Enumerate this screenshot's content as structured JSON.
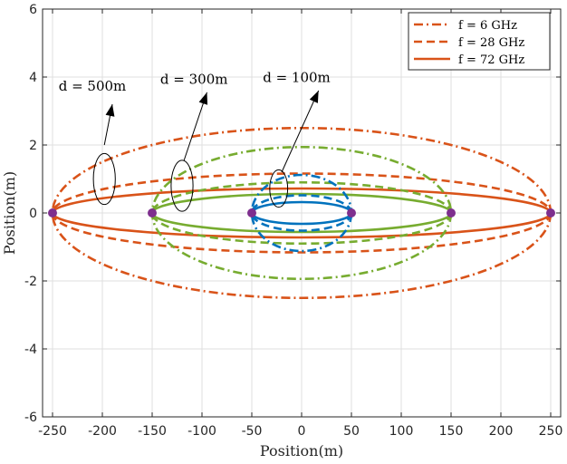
{
  "chart_data": {
    "type": "line",
    "xlabel": "Position(m)",
    "ylabel": "Position(m)",
    "xlim": [
      -260,
      260
    ],
    "ylim": [
      -6,
      6
    ],
    "xticks": [
      -250,
      -200,
      -150,
      -100,
      -50,
      0,
      50,
      100,
      150,
      200,
      250
    ],
    "yticks": [
      -6,
      -4,
      -2,
      0,
      2,
      4,
      6
    ],
    "xtick_labels": [
      "-250",
      "-200",
      "-150",
      "-100",
      "-50",
      "0",
      "50",
      "100",
      "150",
      "200",
      "250"
    ],
    "ytick_labels": [
      "-6",
      "-4",
      "-2",
      "0",
      "2",
      "4",
      "6"
    ],
    "grid": true,
    "legend_position": "top-right",
    "legend": [
      {
        "label": "f = 6 GHz",
        "style": "dashdot"
      },
      {
        "label": "f = 28 GHz",
        "style": "dashed"
      },
      {
        "label": "f = 72 GHz",
        "style": "solid"
      }
    ],
    "colors": {
      "d500": "#d95319",
      "d300": "#77ac30",
      "d100": "#0072bd",
      "points": "#7e2f8e",
      "legend_lines": "#d95319"
    },
    "series": [
      {
        "distance": 500,
        "frequency_ghz": 6,
        "style": "dashdot",
        "x_range": [
          -250,
          250
        ],
        "half_width": 2.5
      },
      {
        "distance": 500,
        "frequency_ghz": 28,
        "style": "dashed",
        "x_range": [
          -250,
          250
        ],
        "half_width": 1.16
      },
      {
        "distance": 500,
        "frequency_ghz": 72,
        "style": "solid",
        "x_range": [
          -250,
          250
        ],
        "half_width": 0.72
      },
      {
        "distance": 300,
        "frequency_ghz": 6,
        "style": "dashdot",
        "x_range": [
          -150,
          150
        ],
        "half_width": 1.94
      },
      {
        "distance": 300,
        "frequency_ghz": 28,
        "style": "dashed",
        "x_range": [
          -150,
          150
        ],
        "half_width": 0.9
      },
      {
        "distance": 300,
        "frequency_ghz": 72,
        "style": "solid",
        "x_range": [
          -150,
          150
        ],
        "half_width": 0.56
      },
      {
        "distance": 100,
        "frequency_ghz": 6,
        "style": "dashdot",
        "x_range": [
          -50,
          50
        ],
        "half_width": 1.12
      },
      {
        "distance": 100,
        "frequency_ghz": 28,
        "style": "dashed",
        "x_range": [
          -50,
          50
        ],
        "half_width": 0.52
      },
      {
        "distance": 100,
        "frequency_ghz": 72,
        "style": "solid",
        "x_range": [
          -50,
          50
        ],
        "half_width": 0.32
      }
    ],
    "points": [
      [
        -250,
        0
      ],
      [
        -150,
        0
      ],
      [
        -50,
        0
      ],
      [
        50,
        0
      ],
      [
        150,
        0
      ],
      [
        250,
        0
      ]
    ],
    "annotations": [
      {
        "text": "d = 500m",
        "label_at": [
          -210,
          3.6
        ],
        "arrow_tip": [
          -190,
          3.2
        ],
        "arrow_tail": [
          -198,
          2.0
        ],
        "ellipse_center": [
          -198,
          1.0
        ],
        "ellipse_rx": 11,
        "ellipse_ry": 0.75
      },
      {
        "text": "d = 300m",
        "label_at": [
          -108,
          3.8
        ],
        "arrow_tip": [
          -95,
          3.55
        ],
        "arrow_tail": [
          -118,
          1.55
        ],
        "ellipse_center": [
          -120,
          0.8
        ],
        "ellipse_rx": 11,
        "ellipse_ry": 0.75
      },
      {
        "text": "d = 100m",
        "label_at": [
          -5,
          3.85
        ],
        "arrow_tip": [
          17,
          3.6
        ],
        "arrow_tail": [
          -20,
          1.2
        ],
        "ellipse_center": [
          -23,
          0.72
        ],
        "ellipse_rx": 9,
        "ellipse_ry": 0.55
      }
    ]
  }
}
